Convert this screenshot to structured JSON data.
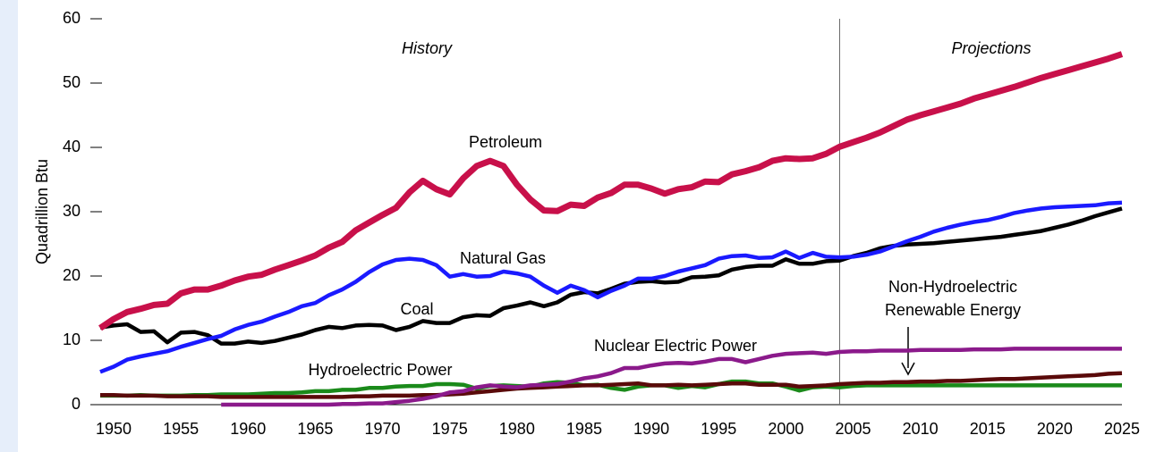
{
  "chart_data": {
    "type": "line",
    "ylabel": "Quadrillion Btu",
    "annotations": [
      "History",
      "Projections"
    ],
    "projection_start": 2004,
    "x": [
      1949,
      1950,
      1951,
      1952,
      1953,
      1954,
      1955,
      1956,
      1957,
      1958,
      1959,
      1960,
      1961,
      1962,
      1963,
      1964,
      1965,
      1966,
      1967,
      1968,
      1969,
      1970,
      1971,
      1972,
      1973,
      1974,
      1975,
      1976,
      1977,
      1978,
      1979,
      1980,
      1981,
      1982,
      1983,
      1984,
      1985,
      1986,
      1987,
      1988,
      1989,
      1990,
      1991,
      1992,
      1993,
      1994,
      1995,
      1996,
      1997,
      1998,
      1999,
      2000,
      2001,
      2002,
      2003,
      2004,
      2005,
      2006,
      2007,
      2008,
      2009,
      2010,
      2011,
      2012,
      2013,
      2014,
      2015,
      2016,
      2017,
      2018,
      2019,
      2020,
      2021,
      2022,
      2023,
      2024,
      2025
    ],
    "xlim": [
      1949,
      2025
    ],
    "xticks": [
      1950,
      1955,
      1960,
      1965,
      1970,
      1975,
      1980,
      1985,
      1990,
      1995,
      2000,
      2005,
      2010,
      2015,
      2020,
      2025
    ],
    "ylim": [
      0,
      60
    ],
    "yticks": [
      0,
      10,
      20,
      30,
      40,
      50,
      60
    ],
    "grid": false,
    "series": [
      {
        "name": "Petroleum",
        "color": "#c8104a",
        "values": [
          11.9,
          13.3,
          14.4,
          14.9,
          15.5,
          15.7,
          17.3,
          17.9,
          17.9,
          18.5,
          19.3,
          19.9,
          20.2,
          21.0,
          21.7,
          22.4,
          23.2,
          24.4,
          25.3,
          27.1,
          28.3,
          29.5,
          30.6,
          33.0,
          34.8,
          33.5,
          32.7,
          35.2,
          37.1,
          37.9,
          37.1,
          34.2,
          31.9,
          30.2,
          30.1,
          31.1,
          30.9,
          32.2,
          32.9,
          34.2,
          34.2,
          33.6,
          32.8,
          33.5,
          33.8,
          34.7,
          34.6,
          35.8,
          36.3,
          36.9,
          37.9,
          38.3,
          38.2,
          38.3,
          39.0,
          40.1,
          40.8,
          41.5,
          42.3,
          43.3,
          44.3,
          45.0,
          45.6,
          46.2,
          46.8,
          47.6,
          48.2,
          48.8,
          49.4,
          50.1,
          50.8,
          51.4,
          52.0,
          52.6,
          53.2,
          53.8,
          54.5
        ]
      },
      {
        "name": "Natural Gas",
        "color": "#1a1aff",
        "values": [
          5.1,
          5.9,
          7.0,
          7.5,
          7.9,
          8.3,
          9.0,
          9.6,
          10.2,
          10.7,
          11.7,
          12.4,
          12.9,
          13.7,
          14.4,
          15.3,
          15.8,
          17.0,
          17.9,
          19.1,
          20.6,
          21.8,
          22.5,
          22.7,
          22.5,
          21.7,
          19.9,
          20.3,
          19.9,
          20.0,
          20.7,
          20.4,
          19.9,
          18.5,
          17.4,
          18.5,
          17.8,
          16.7,
          17.7,
          18.5,
          19.6,
          19.6,
          20.0,
          20.7,
          21.2,
          21.7,
          22.7,
          23.1,
          23.2,
          22.8,
          22.9,
          23.8,
          22.8,
          23.6,
          23.0,
          22.9,
          23.0,
          23.3,
          23.8,
          24.6,
          25.4,
          26.1,
          26.9,
          27.5,
          28.0,
          28.4,
          28.7,
          29.2,
          29.8,
          30.2,
          30.5,
          30.7,
          30.8,
          30.9,
          31.0,
          31.3,
          31.4
        ]
      },
      {
        "name": "Coal",
        "color": "#000000",
        "values": [
          12.0,
          12.3,
          12.5,
          11.3,
          11.4,
          9.7,
          11.2,
          11.3,
          10.8,
          9.5,
          9.5,
          9.8,
          9.6,
          9.9,
          10.4,
          10.9,
          11.6,
          12.1,
          11.9,
          12.3,
          12.4,
          12.3,
          11.6,
          12.1,
          13.0,
          12.7,
          12.7,
          13.6,
          13.9,
          13.8,
          15.0,
          15.4,
          15.9,
          15.3,
          15.9,
          17.1,
          17.5,
          17.3,
          18.0,
          18.8,
          19.1,
          19.2,
          19.0,
          19.1,
          19.8,
          19.9,
          20.1,
          21.0,
          21.4,
          21.6,
          21.6,
          22.6,
          21.9,
          21.9,
          22.3,
          22.4,
          23.1,
          23.6,
          24.3,
          24.7,
          24.9,
          25.0,
          25.1,
          25.3,
          25.5,
          25.7,
          25.9,
          26.1,
          26.4,
          26.7,
          27.0,
          27.5,
          28.0,
          28.6,
          29.3,
          29.9,
          30.5
        ]
      },
      {
        "name": "Nuclear Electric Power",
        "color": "#8b1a8b",
        "values": [
          null,
          null,
          null,
          null,
          null,
          null,
          null,
          null,
          null,
          0.0,
          0.0,
          0.0,
          0.0,
          0.0,
          0.0,
          0.0,
          0.0,
          0.0,
          0.1,
          0.1,
          0.2,
          0.2,
          0.4,
          0.6,
          0.9,
          1.3,
          1.9,
          2.1,
          2.7,
          3.0,
          2.8,
          2.7,
          3.0,
          3.1,
          3.2,
          3.6,
          4.1,
          4.4,
          4.9,
          5.7,
          5.7,
          6.1,
          6.4,
          6.5,
          6.4,
          6.7,
          7.1,
          7.1,
          6.6,
          7.1,
          7.6,
          7.9,
          8.0,
          8.1,
          7.9,
          8.2,
          8.3,
          8.3,
          8.4,
          8.4,
          8.4,
          8.5,
          8.5,
          8.5,
          8.5,
          8.6,
          8.6,
          8.6,
          8.7,
          8.7,
          8.7,
          8.7,
          8.7,
          8.7,
          8.7,
          8.7,
          8.7
        ]
      },
      {
        "name": "Hydroelectric Power",
        "color": "#1a8a1a",
        "values": [
          1.4,
          1.4,
          1.4,
          1.5,
          1.4,
          1.4,
          1.4,
          1.5,
          1.5,
          1.6,
          1.6,
          1.6,
          1.7,
          1.8,
          1.8,
          1.9,
          2.1,
          2.1,
          2.3,
          2.3,
          2.6,
          2.6,
          2.8,
          2.9,
          2.9,
          3.2,
          3.2,
          3.1,
          2.5,
          2.9,
          3.0,
          2.9,
          2.8,
          3.3,
          3.5,
          3.4,
          3.0,
          3.1,
          2.6,
          2.3,
          2.8,
          3.0,
          3.0,
          2.6,
          2.9,
          2.7,
          3.2,
          3.6,
          3.6,
          3.3,
          3.3,
          2.8,
          2.2,
          2.7,
          2.8,
          2.7,
          2.9,
          3.0,
          3.0,
          3.0,
          3.0,
          3.0,
          3.0,
          3.0,
          3.0,
          3.0,
          3.0,
          3.0,
          3.0,
          3.0,
          3.0,
          3.0,
          3.0,
          3.0,
          3.0,
          3.0,
          3.0
        ]
      },
      {
        "name": "Non-Hydroelectric Renewable Energy",
        "color": "#5a0a0a",
        "values": [
          1.5,
          1.5,
          1.4,
          1.4,
          1.4,
          1.3,
          1.3,
          1.3,
          1.3,
          1.2,
          1.2,
          1.2,
          1.2,
          1.2,
          1.2,
          1.2,
          1.2,
          1.2,
          1.2,
          1.3,
          1.3,
          1.4,
          1.4,
          1.4,
          1.5,
          1.5,
          1.6,
          1.7,
          1.9,
          2.1,
          2.3,
          2.5,
          2.6,
          2.7,
          2.8,
          2.9,
          3.0,
          3.0,
          3.1,
          3.2,
          3.3,
          3.0,
          3.0,
          3.1,
          3.0,
          3.1,
          3.2,
          3.3,
          3.3,
          3.1,
          3.1,
          3.1,
          2.8,
          2.9,
          3.0,
          3.2,
          3.3,
          3.4,
          3.4,
          3.5,
          3.5,
          3.6,
          3.6,
          3.7,
          3.7,
          3.8,
          3.9,
          4.0,
          4.0,
          4.1,
          4.2,
          4.3,
          4.4,
          4.5,
          4.6,
          4.8,
          4.9
        ]
      }
    ]
  }
}
